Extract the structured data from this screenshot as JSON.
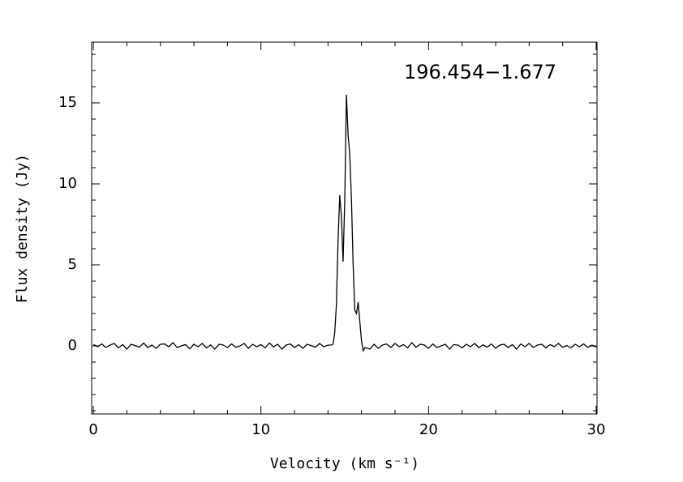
{
  "chart_data": {
    "type": "line",
    "annotation": "196.454−1.677",
    "x_label": "Velocity (km s⁻¹)",
    "y_label": "Flux density (Jy)",
    "xlim": [
      -0.1,
      30.05
    ],
    "ylim": [
      -4.2,
      18.75
    ],
    "xticks": [
      0,
      10,
      20,
      30
    ],
    "yticks": [
      0,
      5,
      10,
      15
    ],
    "xminorticks": [
      2,
      4,
      6,
      8,
      12,
      14,
      16,
      18,
      22,
      24,
      26,
      28
    ],
    "yminorticks": [
      -4,
      -3,
      -2,
      -1,
      1,
      2,
      3,
      4,
      6,
      7,
      8,
      9,
      11,
      12,
      13,
      14,
      16,
      17,
      18
    ],
    "x": [
      0,
      0.25,
      0.5,
      0.75,
      1,
      1.25,
      1.5,
      1.75,
      2,
      2.25,
      2.5,
      2.75,
      3,
      3.25,
      3.5,
      3.75,
      4,
      4.25,
      4.5,
      4.75,
      5,
      5.25,
      5.5,
      5.75,
      6,
      6.25,
      6.5,
      6.75,
      7,
      7.25,
      7.5,
      7.75,
      8,
      8.25,
      8.5,
      8.75,
      9,
      9.25,
      9.5,
      9.75,
      10,
      10.25,
      10.5,
      10.75,
      11,
      11.25,
      11.5,
      11.75,
      12,
      12.25,
      12.5,
      12.75,
      13,
      13.25,
      13.5,
      13.75,
      14,
      14.2,
      14.3,
      14.4,
      14.5,
      14.6,
      14.7,
      14.8,
      14.9,
      15.0,
      15.1,
      15.2,
      15.3,
      15.4,
      15.5,
      15.6,
      15.7,
      15.8,
      15.9,
      16.0,
      16.1,
      16.2,
      16.5,
      16.75,
      17,
      17.25,
      17.5,
      17.75,
      18,
      18.25,
      18.5,
      18.75,
      19,
      19.25,
      19.5,
      19.75,
      20,
      20.25,
      20.5,
      20.75,
      21,
      21.25,
      21.5,
      21.75,
      22,
      22.25,
      22.5,
      22.75,
      23,
      23.25,
      23.5,
      23.75,
      24,
      24.25,
      24.5,
      24.75,
      25,
      25.25,
      25.5,
      25.75,
      26,
      26.25,
      26.5,
      26.75,
      27,
      27.25,
      27.5,
      27.75,
      28,
      28.25,
      28.5,
      28.75,
      29,
      29.25,
      29.5,
      29.75,
      30
    ],
    "series": [
      {
        "color": "#000000",
        "values": [
          0.1,
          -0.05,
          0.12,
          -0.1,
          0.05,
          0.15,
          -0.12,
          0.08,
          -0.2,
          0.1,
          0.02,
          -0.08,
          0.18,
          -0.1,
          0.05,
          -0.15,
          0.1,
          0.12,
          -0.05,
          0.2,
          -0.1,
          0.0,
          0.08,
          -0.18,
          0.1,
          -0.05,
          0.15,
          -0.12,
          0.06,
          -0.2,
          0.1,
          0.05,
          -0.1,
          0.12,
          -0.08,
          0.0,
          0.15,
          -0.15,
          0.1,
          -0.05,
          0.08,
          -0.12,
          0.18,
          -0.06,
          0.1,
          -0.2,
          0.05,
          0.12,
          -0.1,
          0.08,
          -0.15,
          0.1,
          0.02,
          -0.08,
          0.15,
          -0.05,
          0.05,
          0.05,
          0.1,
          0.8,
          2.5,
          6.5,
          9.3,
          8.0,
          5.2,
          9.0,
          15.5,
          13.0,
          11.8,
          9.0,
          5.0,
          2.2,
          2.0,
          2.7,
          1.5,
          0.3,
          -0.3,
          -0.1,
          -0.2,
          0.1,
          -0.15,
          0.05,
          0.12,
          -0.1,
          0.15,
          -0.05,
          0.08,
          -0.12,
          0.2,
          -0.08,
          0.1,
          0.05,
          -0.15,
          0.12,
          -0.1,
          0.0,
          0.1,
          -0.2,
          0.08,
          0.05,
          -0.12,
          0.1,
          -0.05,
          0.15,
          -0.1,
          0.06,
          -0.08,
          0.12,
          -0.15,
          0.05,
          0.1,
          -0.1,
          0.08,
          -0.2,
          0.12,
          -0.05,
          0.15,
          -0.1,
          0.05,
          0.1,
          -0.12,
          0.08,
          -0.05,
          0.15,
          -0.08,
          0.02,
          -0.12,
          0.1,
          -0.05,
          0.12,
          -0.1,
          0.05,
          -0.08
        ]
      }
    ]
  }
}
